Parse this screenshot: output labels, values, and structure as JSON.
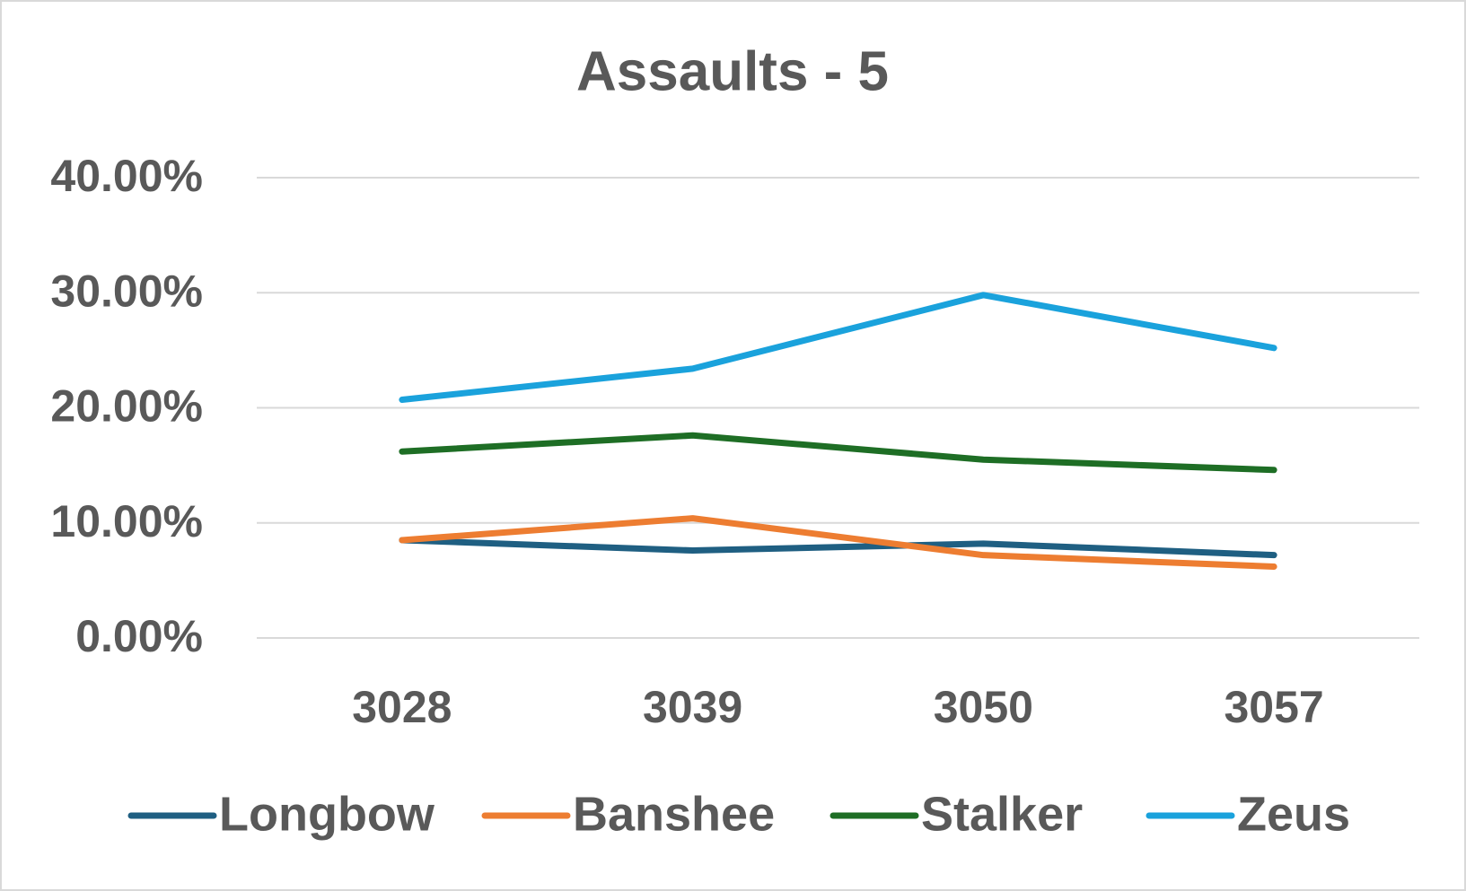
{
  "chart_data": {
    "type": "line",
    "title": "Assaults - 5",
    "categories": [
      "3028",
      "3039",
      "3050",
      "3057"
    ],
    "series": [
      {
        "name": "Longbow",
        "color": "#1f5f82",
        "values": [
          8.5,
          7.6,
          8.2,
          7.2
        ]
      },
      {
        "name": "Banshee",
        "color": "#ed7d31",
        "values": [
          8.5,
          10.4,
          7.2,
          6.2
        ]
      },
      {
        "name": "Stalker",
        "color": "#1e6e25",
        "values": [
          16.2,
          17.6,
          15.5,
          14.6
        ]
      },
      {
        "name": "Zeus",
        "color": "#1aa2dc",
        "values": [
          20.7,
          23.4,
          29.8,
          25.2
        ]
      }
    ],
    "ylim": [
      0,
      40
    ],
    "yticks": [
      {
        "value": 0,
        "label": "0.00%"
      },
      {
        "value": 10,
        "label": "10.00%"
      },
      {
        "value": 20,
        "label": "20.00%"
      },
      {
        "value": 30,
        "label": "30.00%"
      },
      {
        "value": 40,
        "label": "40.00%"
      }
    ],
    "grid": true,
    "legend": "bottom"
  }
}
